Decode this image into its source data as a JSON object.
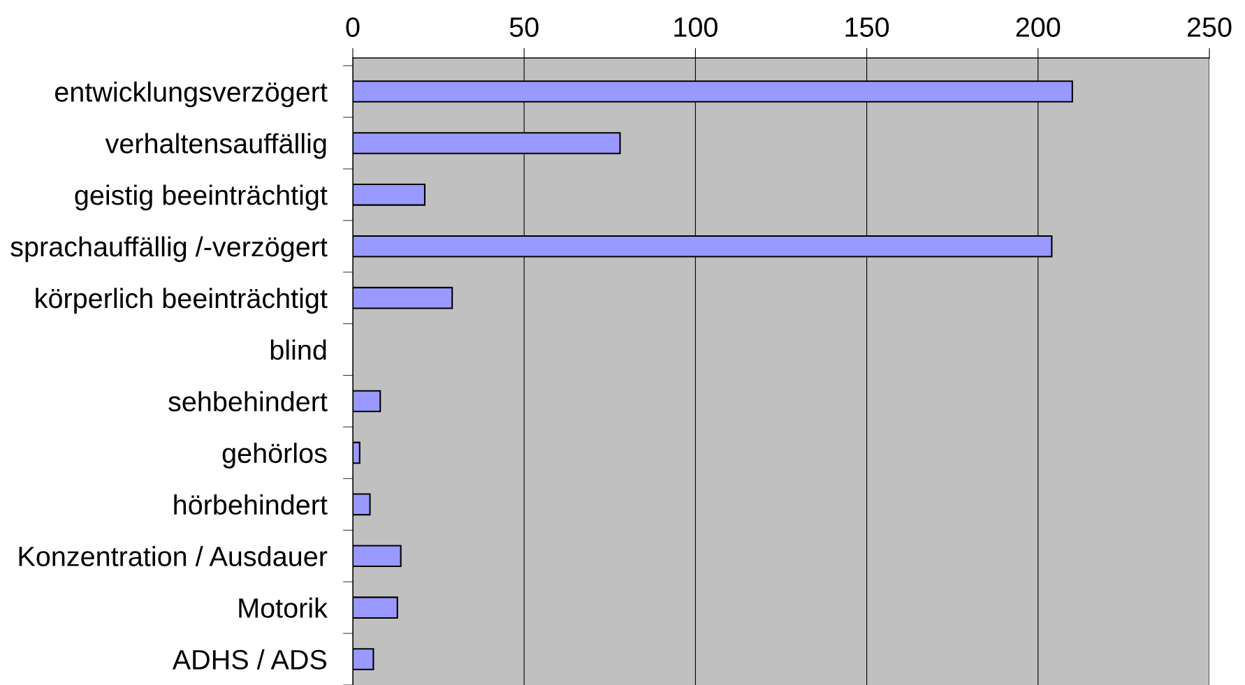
{
  "chart_data": {
    "type": "bar",
    "orientation": "horizontal",
    "categories": [
      "entwicklungsverzögert",
      "verhaltensauffällig",
      "geistig beeinträchtigt",
      "sprachauffällig /-verzögert",
      "körperlich beeinträchtigt",
      "blind",
      "sehbehindert",
      "gehörlos",
      "hörbehindert",
      "Konzentration / Ausdauer",
      "Motorik",
      "ADHS / ADS"
    ],
    "values": [
      210,
      78,
      21,
      204,
      29,
      0,
      8,
      2,
      5,
      14,
      13,
      6
    ],
    "color": "#9999ff",
    "xlim": [
      0,
      250
    ],
    "xticks": [
      0,
      50,
      100,
      150,
      200,
      250
    ],
    "grid": "x"
  }
}
